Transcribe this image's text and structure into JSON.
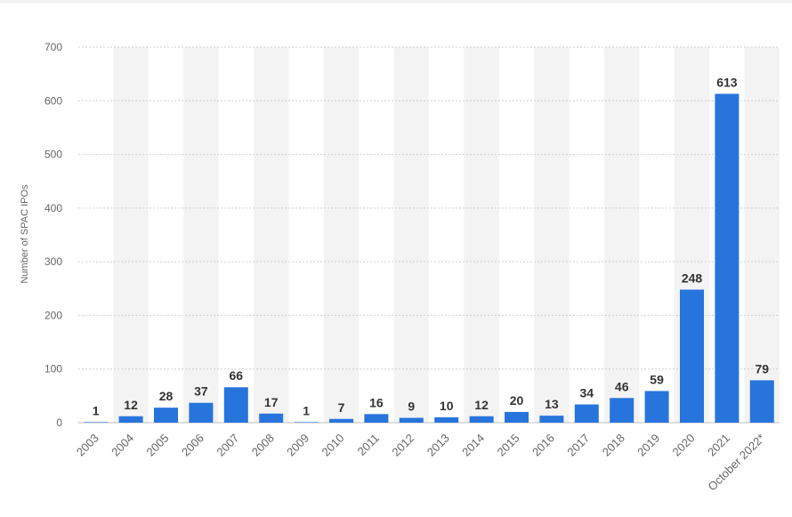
{
  "chart_data": {
    "type": "bar",
    "title": "",
    "xlabel": "",
    "ylabel": "Number of SPAC IPOs",
    "categories": [
      "2003",
      "2004",
      "2005",
      "2006",
      "2007",
      "2008",
      "2009",
      "2010",
      "2011",
      "2012",
      "2013",
      "2014",
      "2015",
      "2016",
      "2017",
      "2018",
      "2019",
      "2020",
      "2021",
      "October 2022*"
    ],
    "values": [
      1,
      12,
      28,
      37,
      66,
      17,
      1,
      7,
      16,
      9,
      10,
      12,
      20,
      13,
      34,
      46,
      59,
      248,
      613,
      79
    ],
    "ylim": [
      0,
      700
    ],
    "yticks": [
      0,
      100,
      200,
      300,
      400,
      500,
      600,
      700
    ],
    "grid": true,
    "legend": "none",
    "colors": {
      "bar": "#2874dd",
      "band": "#f3f3f3",
      "grid": "#cfcfcf",
      "tick_text": "#666666",
      "value_text": "#333333"
    }
  }
}
